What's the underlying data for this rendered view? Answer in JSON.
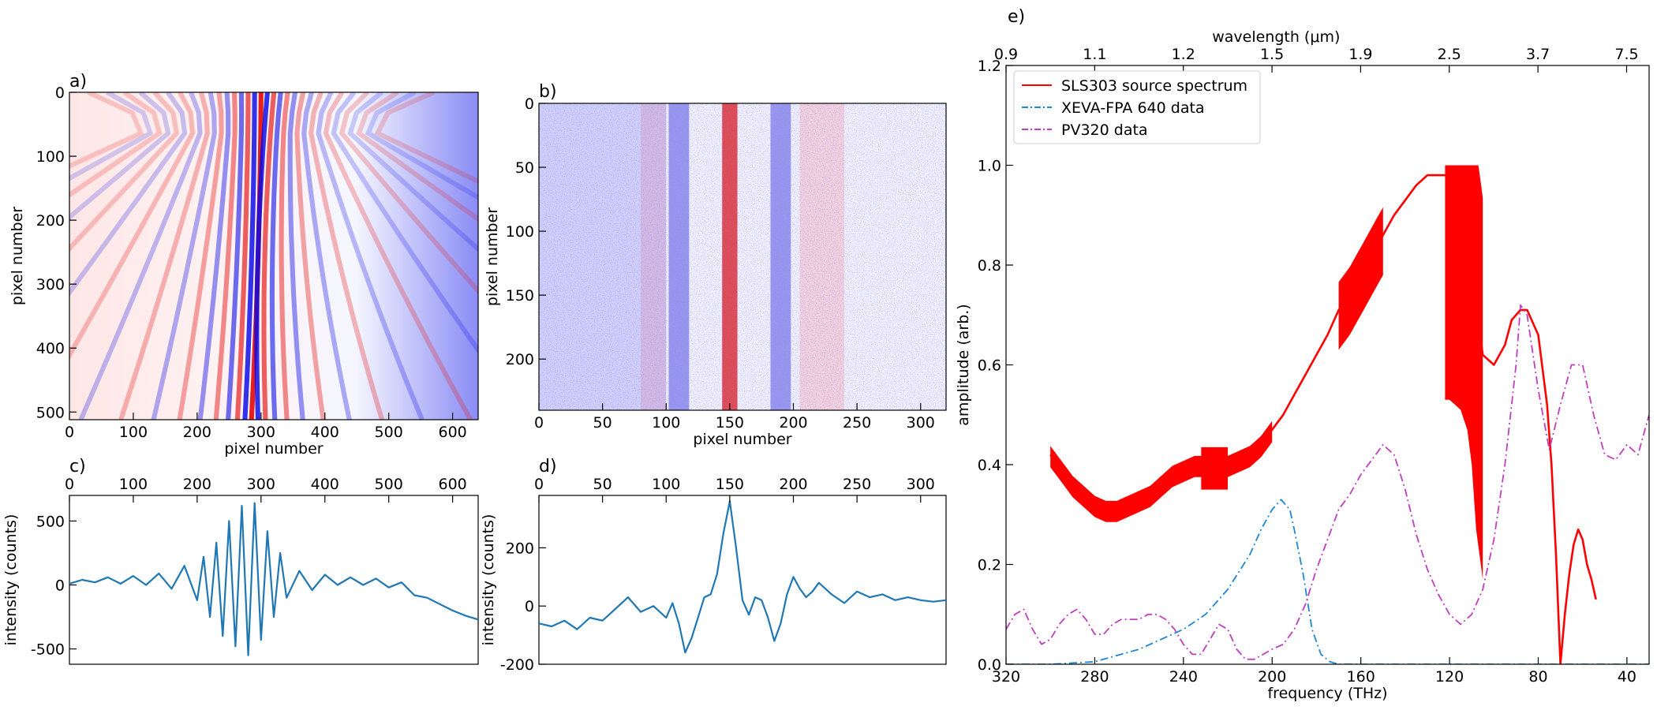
{
  "chart_data": [
    {
      "id": "a",
      "type": "heatmap",
      "panel_label": "a)",
      "xlabel": "pixel number",
      "ylabel": "pixel number",
      "xlim": [
        0,
        640
      ],
      "ylim": [
        512,
        0
      ],
      "xticks": [
        0,
        100,
        200,
        300,
        400,
        500,
        600
      ],
      "yticks": [
        0,
        100,
        200,
        300,
        400,
        500
      ],
      "colormap": "bwr",
      "fringe_center_top": 300,
      "fringe_center_bottom": 285,
      "fringe_period": 20
    },
    {
      "id": "b",
      "type": "heatmap",
      "panel_label": "b)",
      "xlabel": "pixel number",
      "ylabel": "pixel number",
      "xlim": [
        0,
        320
      ],
      "ylim": [
        240,
        0
      ],
      "xticks": [
        0,
        50,
        100,
        150,
        200,
        250,
        300
      ],
      "yticks": [
        0,
        50,
        100,
        150,
        200
      ],
      "colormap": "bwr",
      "red_band_center": 150,
      "blue_band_centers": [
        110,
        190
      ]
    },
    {
      "id": "c",
      "type": "line",
      "panel_label": "c)",
      "ylabel": "intensity (counts)",
      "xlim": [
        0,
        640
      ],
      "ylim": [
        -620,
        700
      ],
      "xticks": [
        0,
        100,
        200,
        300,
        400,
        500,
        600
      ],
      "yticks": [
        -500,
        0,
        500
      ],
      "color": "#1f77b4",
      "x": [
        0,
        20,
        40,
        60,
        80,
        100,
        120,
        140,
        160,
        180,
        200,
        210,
        220,
        230,
        240,
        250,
        260,
        270,
        280,
        290,
        300,
        310,
        320,
        330,
        340,
        360,
        380,
        400,
        420,
        440,
        460,
        480,
        500,
        520,
        540,
        560,
        580,
        600,
        620,
        640
      ],
      "y": [
        10,
        40,
        20,
        60,
        10,
        70,
        0,
        90,
        -30,
        150,
        -120,
        220,
        -250,
        330,
        -400,
        500,
        -480,
        620,
        -550,
        640,
        -430,
        420,
        -250,
        250,
        -100,
        110,
        -40,
        80,
        0,
        60,
        0,
        50,
        -20,
        20,
        -80,
        -100,
        -150,
        -200,
        -240,
        -270
      ]
    },
    {
      "id": "d",
      "type": "line",
      "panel_label": "d)",
      "ylabel": "intensity (counts)",
      "xlim": [
        0,
        320
      ],
      "ylim": [
        -200,
        380
      ],
      "xticks": [
        0,
        50,
        100,
        150,
        200,
        250,
        300
      ],
      "yticks": [
        -200,
        0,
        200
      ],
      "color": "#1f77b4",
      "x": [
        0,
        10,
        20,
        30,
        40,
        50,
        60,
        70,
        80,
        90,
        100,
        105,
        110,
        115,
        120,
        125,
        130,
        135,
        140,
        145,
        150,
        155,
        160,
        165,
        170,
        175,
        180,
        185,
        190,
        195,
        200,
        205,
        210,
        215,
        220,
        230,
        240,
        250,
        260,
        270,
        280,
        290,
        300,
        310,
        320
      ],
      "y": [
        -60,
        -70,
        -50,
        -80,
        -40,
        -50,
        -10,
        30,
        -20,
        0,
        -40,
        10,
        -60,
        -160,
        -110,
        -40,
        30,
        40,
        110,
        250,
        360,
        200,
        20,
        -30,
        30,
        20,
        -40,
        -120,
        -60,
        40,
        100,
        60,
        30,
        50,
        80,
        40,
        10,
        50,
        30,
        40,
        20,
        30,
        20,
        15,
        20
      ]
    },
    {
      "id": "e",
      "type": "line",
      "panel_label": "e)",
      "xlabel": "frequency (THz)",
      "ylabel": "amplitude (arb.)",
      "x2label": "wavelength (μm)",
      "xlim": [
        320,
        30
      ],
      "ylim": [
        0,
        1.2
      ],
      "xticks": [
        320,
        280,
        240,
        200,
        160,
        120,
        80,
        40
      ],
      "yticks": [
        0.0,
        0.2,
        0.4,
        0.6,
        0.8,
        1.0,
        1.2
      ],
      "x2ticks": [
        "0.9",
        "1.1",
        "1.2",
        "1.5",
        "1.9",
        "2.5",
        "3.7",
        "7.5"
      ],
      "legend_position": "top-left",
      "series": [
        {
          "name": "SLS303 source spectrum",
          "color": "#ff0000",
          "style": "solid",
          "x": [
            300,
            295,
            290,
            285,
            280,
            275,
            270,
            265,
            260,
            255,
            250,
            245,
            240,
            235,
            230,
            225,
            220,
            215,
            210,
            205,
            200,
            195,
            190,
            185,
            180,
            175,
            170,
            165,
            160,
            155,
            150,
            145,
            140,
            135,
            130,
            125,
            120,
            115,
            112,
            110,
            108,
            105,
            100,
            95,
            92,
            88,
            85,
            80,
            76,
            74,
            72,
            70,
            68,
            66,
            64,
            62,
            60,
            58,
            56,
            54
          ],
          "y": [
            0.42,
            0.39,
            0.36,
            0.34,
            0.32,
            0.31,
            0.31,
            0.32,
            0.33,
            0.34,
            0.36,
            0.38,
            0.39,
            0.4,
            0.4,
            0.4,
            0.4,
            0.41,
            0.42,
            0.44,
            0.47,
            0.5,
            0.54,
            0.58,
            0.62,
            0.66,
            0.71,
            0.74,
            0.78,
            0.82,
            0.86,
            0.9,
            0.93,
            0.96,
            0.98,
            0.98,
            0.98,
            0.96,
            0.92,
            0.85,
            0.72,
            0.62,
            0.6,
            0.64,
            0.69,
            0.71,
            0.71,
            0.66,
            0.52,
            0.4,
            0.22,
            0.0,
            0.1,
            0.18,
            0.24,
            0.27,
            0.25,
            0.2,
            0.17,
            0.13
          ],
          "noise_bands": [
            {
              "x_from": 300,
              "x_to": 200,
              "half_width": 0.025
            },
            {
              "x_from": 232,
              "x_to": 220,
              "half_width": 0.05
            },
            {
              "x_from": 170,
              "x_to": 150,
              "half_width": 0.08
            },
            {
              "x_from": 122,
              "x_to": 105,
              "half_width": 0.45
            }
          ]
        },
        {
          "name": "XEVA-FPA 640 data",
          "color": "#1f86d6",
          "style": "dashdot",
          "x": [
            320,
            300,
            280,
            260,
            240,
            230,
            220,
            210,
            205,
            200,
            196,
            192,
            190,
            186,
            182,
            178,
            174,
            170,
            160,
            140,
            120,
            100,
            80,
            60,
            40,
            30
          ],
          "y": [
            0.0,
            0.0,
            0.005,
            0.03,
            0.07,
            0.1,
            0.15,
            0.22,
            0.27,
            0.31,
            0.33,
            0.31,
            0.27,
            0.18,
            0.07,
            0.02,
            0.005,
            0.0,
            0.0,
            0.0,
            0.0,
            0.0,
            0.0,
            0.0,
            0.0,
            0.0
          ]
        },
        {
          "name": "PV320 data",
          "color": "#bf3fbf",
          "style": "dashdot",
          "x": [
            320,
            316,
            312,
            308,
            304,
            300,
            296,
            292,
            288,
            284,
            280,
            276,
            272,
            268,
            264,
            260,
            256,
            252,
            248,
            244,
            240,
            236,
            232,
            228,
            224,
            220,
            216,
            212,
            208,
            204,
            200,
            195,
            190,
            185,
            180,
            175,
            170,
            165,
            160,
            155,
            150,
            145,
            140,
            135,
            130,
            125,
            120,
            115,
            110,
            105,
            100,
            95,
            90,
            88,
            85,
            80,
            75,
            70,
            65,
            60,
            55,
            50,
            45,
            40,
            35,
            30
          ],
          "y": [
            0.07,
            0.1,
            0.11,
            0.07,
            0.04,
            0.05,
            0.08,
            0.1,
            0.11,
            0.09,
            0.06,
            0.06,
            0.08,
            0.09,
            0.09,
            0.09,
            0.1,
            0.1,
            0.09,
            0.07,
            0.04,
            0.02,
            0.02,
            0.05,
            0.08,
            0.07,
            0.03,
            0.01,
            0.01,
            0.02,
            0.03,
            0.04,
            0.07,
            0.12,
            0.19,
            0.25,
            0.31,
            0.34,
            0.38,
            0.41,
            0.44,
            0.42,
            0.35,
            0.26,
            0.19,
            0.14,
            0.1,
            0.08,
            0.1,
            0.15,
            0.25,
            0.4,
            0.6,
            0.72,
            0.7,
            0.55,
            0.43,
            0.52,
            0.6,
            0.6,
            0.5,
            0.42,
            0.41,
            0.44,
            0.42,
            0.5
          ]
        }
      ]
    }
  ]
}
